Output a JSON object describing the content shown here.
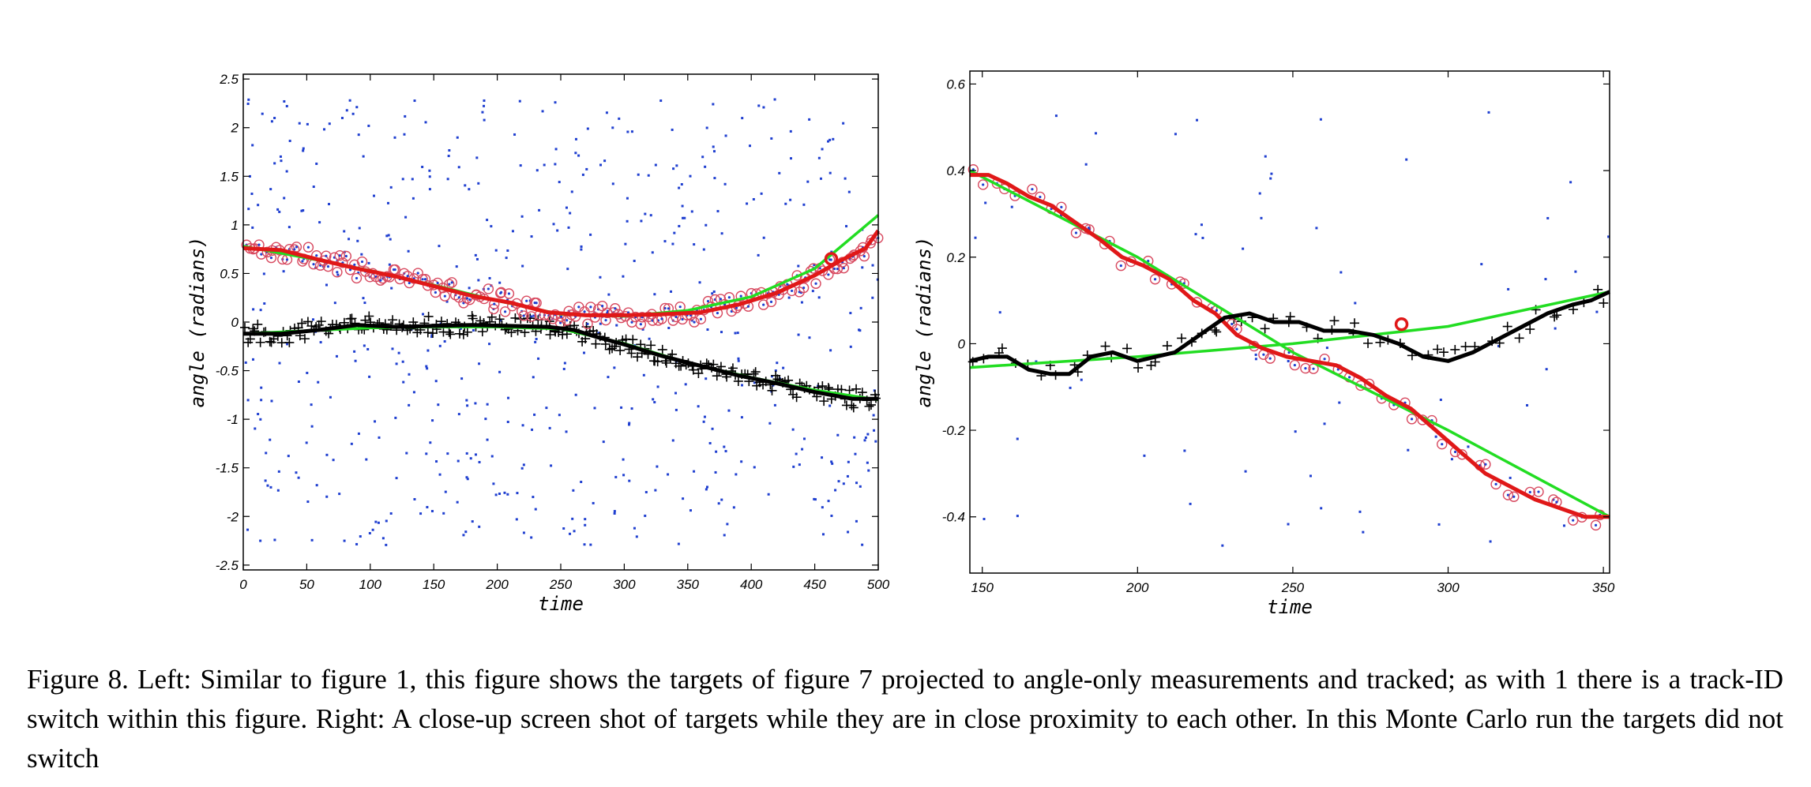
{
  "caption": "Figure 8. Left: Similar to figure 1, this figure shows the targets of figure 7 projected to angle-only measurements and tracked; as with 1 there is a track-ID switch within this figure. Right: A close-up screen shot of targets while they are in close proximity to each other. In this Monte Carlo run the targets did not switch",
  "colors": {
    "clutter": "#1f3fd0",
    "target1": "#e01818",
    "target2": "#000000",
    "truth": "#22dd22",
    "target1_marker_ring": "#d84a60"
  },
  "chart_data": [
    {
      "type": "scatter",
      "xlabel": "time",
      "ylabel": "angle (radians)",
      "xlim": [
        0,
        500
      ],
      "ylim": [
        -2.55,
        2.55
      ],
      "xticks": [
        0,
        50,
        100,
        150,
        200,
        250,
        300,
        350,
        400,
        450,
        500
      ],
      "yticks": [
        -2.5,
        -2,
        -1.5,
        -1,
        -0.5,
        0,
        0.5,
        1,
        1.5,
        2,
        2.5
      ],
      "grid": false,
      "truth_tracks": [
        {
          "x": [
            0,
            50,
            100,
            150,
            200,
            250,
            300,
            350,
            400,
            450,
            500
          ],
          "y": [
            0.78,
            0.66,
            0.53,
            0.38,
            0.22,
            0.08,
            0.06,
            0.12,
            0.26,
            0.55,
            1.1
          ]
        },
        {
          "x": [
            0,
            50,
            100,
            150,
            200,
            250,
            300,
            350,
            400,
            450,
            500
          ],
          "y": [
            -0.12,
            -0.09,
            -0.06,
            -0.05,
            -0.05,
            -0.07,
            -0.22,
            -0.42,
            -0.57,
            -0.7,
            -0.8
          ]
        }
      ],
      "estimated_tracks": [
        {
          "x": [
            0,
            30,
            60,
            90,
            120,
            150,
            180,
            210,
            240,
            270,
            300,
            330,
            360,
            390,
            420,
            450,
            470,
            490,
            500
          ],
          "y": [
            0.76,
            0.74,
            0.64,
            0.55,
            0.47,
            0.37,
            0.27,
            0.2,
            0.1,
            0.07,
            0.07,
            0.08,
            0.1,
            0.18,
            0.3,
            0.48,
            0.63,
            0.76,
            0.94
          ]
        },
        {
          "x": [
            0,
            30,
            60,
            90,
            120,
            150,
            180,
            210,
            240,
            260,
            280,
            300,
            330,
            360,
            390,
            420,
            450,
            480,
            500
          ],
          "y": [
            -0.12,
            -0.12,
            -0.08,
            -0.03,
            -0.05,
            -0.04,
            -0.03,
            -0.04,
            -0.05,
            -0.08,
            -0.16,
            -0.23,
            -0.35,
            -0.45,
            -0.55,
            -0.63,
            -0.72,
            -0.79,
            -0.79
          ]
        }
      ],
      "highlight": {
        "x": 463,
        "y": 0.65
      }
    },
    {
      "type": "scatter",
      "xlabel": "time",
      "ylabel": "angle (radians)",
      "xlim": [
        146,
        352
      ],
      "ylim": [
        -0.53,
        0.63
      ],
      "xticks": [
        150,
        200,
        250,
        300,
        350
      ],
      "yticks": [
        -0.4,
        -0.2,
        0,
        0.2,
        0.4,
        0.6
      ],
      "grid": false,
      "truth_tracks": [
        {
          "x": [
            146,
            200,
            250,
            300,
            352
          ],
          "y": [
            0.4,
            0.2,
            -0.02,
            -0.2,
            -0.4
          ]
        },
        {
          "x": [
            146,
            200,
            250,
            300,
            352
          ],
          "y": [
            -0.055,
            -0.03,
            0,
            0.04,
            0.12
          ]
        }
      ],
      "estimated_tracks": [
        {
          "x": [
            146,
            152,
            158,
            165,
            172,
            180,
            188,
            195,
            202,
            210,
            218,
            225,
            232,
            240,
            248,
            256,
            264,
            272,
            280,
            288,
            296,
            304,
            312,
            320,
            328,
            336,
            344,
            352
          ],
          "y": [
            0.39,
            0.39,
            0.37,
            0.34,
            0.32,
            0.28,
            0.24,
            0.2,
            0.18,
            0.15,
            0.1,
            0.07,
            0.02,
            -0.01,
            -0.03,
            -0.04,
            -0.05,
            -0.08,
            -0.12,
            -0.15,
            -0.2,
            -0.25,
            -0.3,
            -0.33,
            -0.36,
            -0.38,
            -0.4,
            -0.4
          ]
        },
        {
          "x": [
            146,
            152,
            158,
            165,
            172,
            178,
            185,
            192,
            200,
            206,
            212,
            220,
            228,
            236,
            244,
            252,
            260,
            268,
            276,
            284,
            292,
            300,
            308,
            316,
            324,
            332,
            340,
            346,
            352
          ],
          "y": [
            -0.04,
            -0.03,
            -0.03,
            -0.06,
            -0.07,
            -0.07,
            -0.03,
            -0.02,
            -0.04,
            -0.03,
            -0.02,
            0.02,
            0.06,
            0.07,
            0.05,
            0.05,
            0.03,
            0.03,
            0.02,
            0,
            -0.03,
            -0.04,
            -0.02,
            0.01,
            0.04,
            0.07,
            0.09,
            0.1,
            0.12
          ]
        }
      ],
      "highlight": {
        "x": 285,
        "y": 0.045
      }
    }
  ]
}
